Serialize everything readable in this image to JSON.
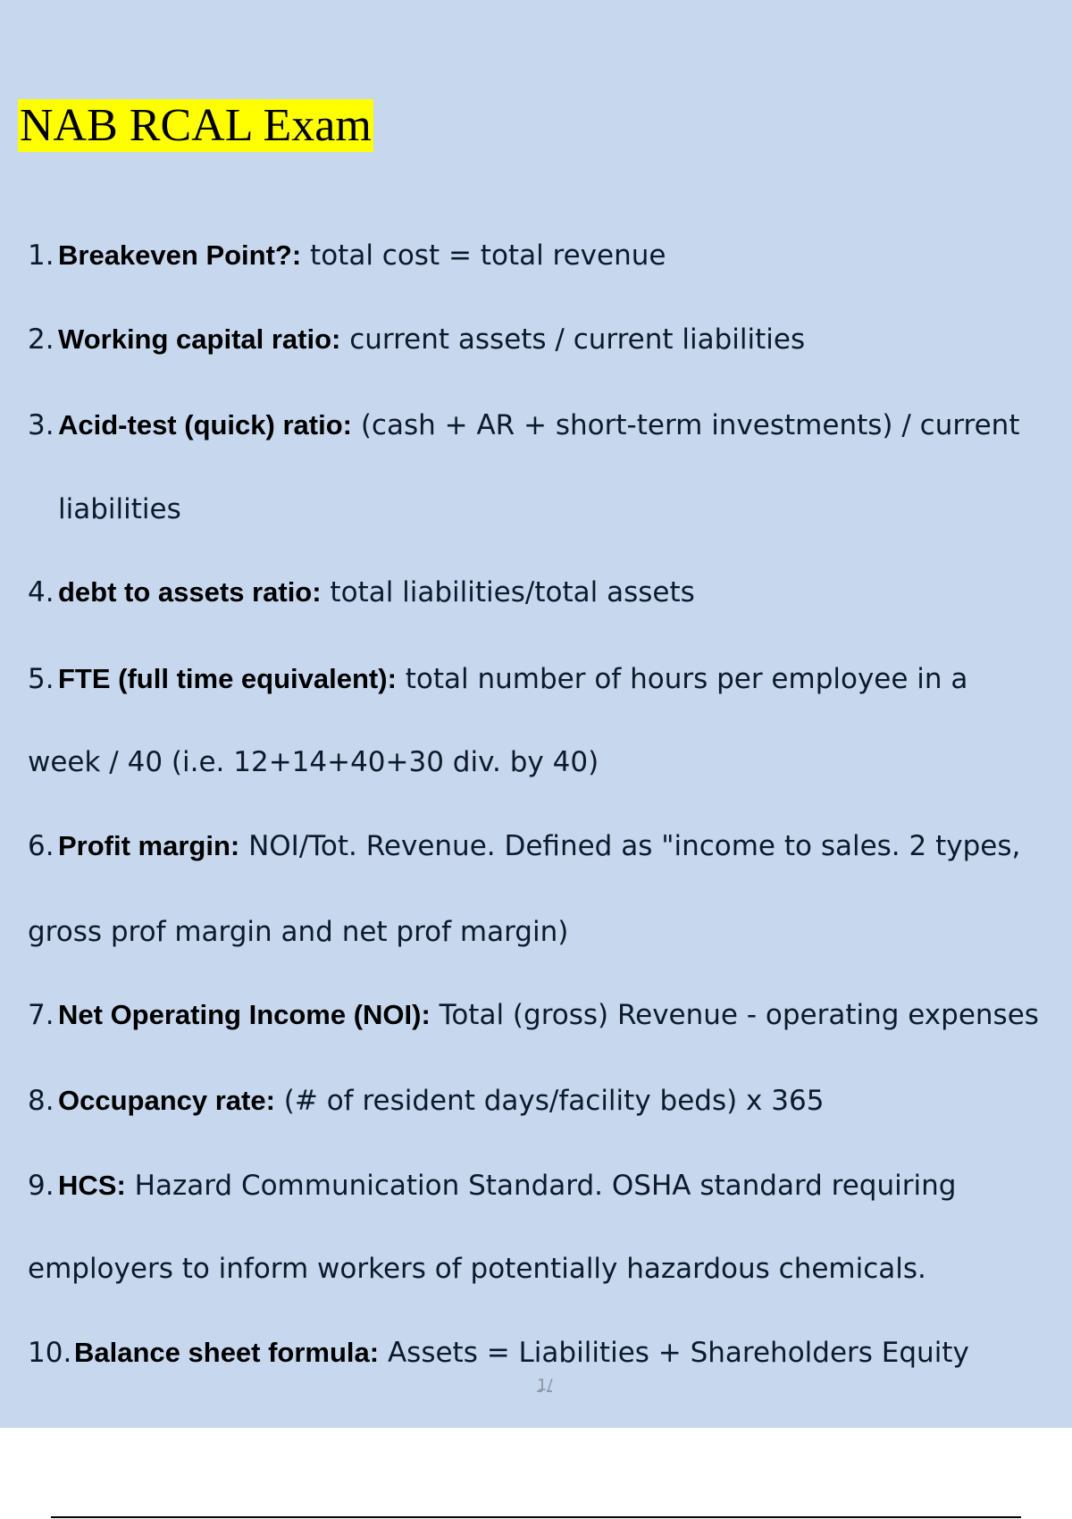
{
  "title": "NAB RCAL Exam",
  "items": [
    {
      "num": "1.",
      "label": "Breakeven Point?:",
      "text": " total cost = total revenue"
    },
    {
      "num": "2.",
      "label": "Working capital ratio:",
      "text": " current assets / current liabilities"
    },
    {
      "num": "3.",
      "label": "Acid-test (quick) ratio:",
      "text": " (cash + AR + short-term investments) / current",
      "cont": "liabilities"
    },
    {
      "num": "4.",
      "label": "debt to assets ratio:",
      "text": " total liabilities/total assets"
    },
    {
      "num": "5.",
      "label": "FTE (full time equivalent):",
      "text": " total number of hours per employee in a",
      "cont": "week / 40 (i.e. 12+14+40+30 div. by 40)"
    },
    {
      "num": "6.",
      "label": "Profit margin:",
      "text": " NOI/Tot. Revenue. Defined as \"income to sales. 2 types,",
      "cont": "gross prof margin and net prof margin)"
    },
    {
      "num": "7.",
      "label": "Net Operating Income (NOI):",
      "text": " Total (gross) Revenue - operating expenses"
    },
    {
      "num": "8.",
      "label": "Occupancy rate:",
      "text": " (# of resident days/facility beds) x 365"
    },
    {
      "num": "9.",
      "label": "HCS:",
      "text": " Hazard Communication Standard. OSHA standard requiring",
      "cont": "employers to inform workers of potentially hazardous chemicals."
    },
    {
      "num": "10.",
      "label": "Balance sheet formula:",
      "text": " Assets = Liabilities + Shareholders Equity"
    }
  ],
  "page_number": "1/",
  "colors": {
    "page_bg": "#c7d8ee",
    "highlight": "#ffff00"
  }
}
